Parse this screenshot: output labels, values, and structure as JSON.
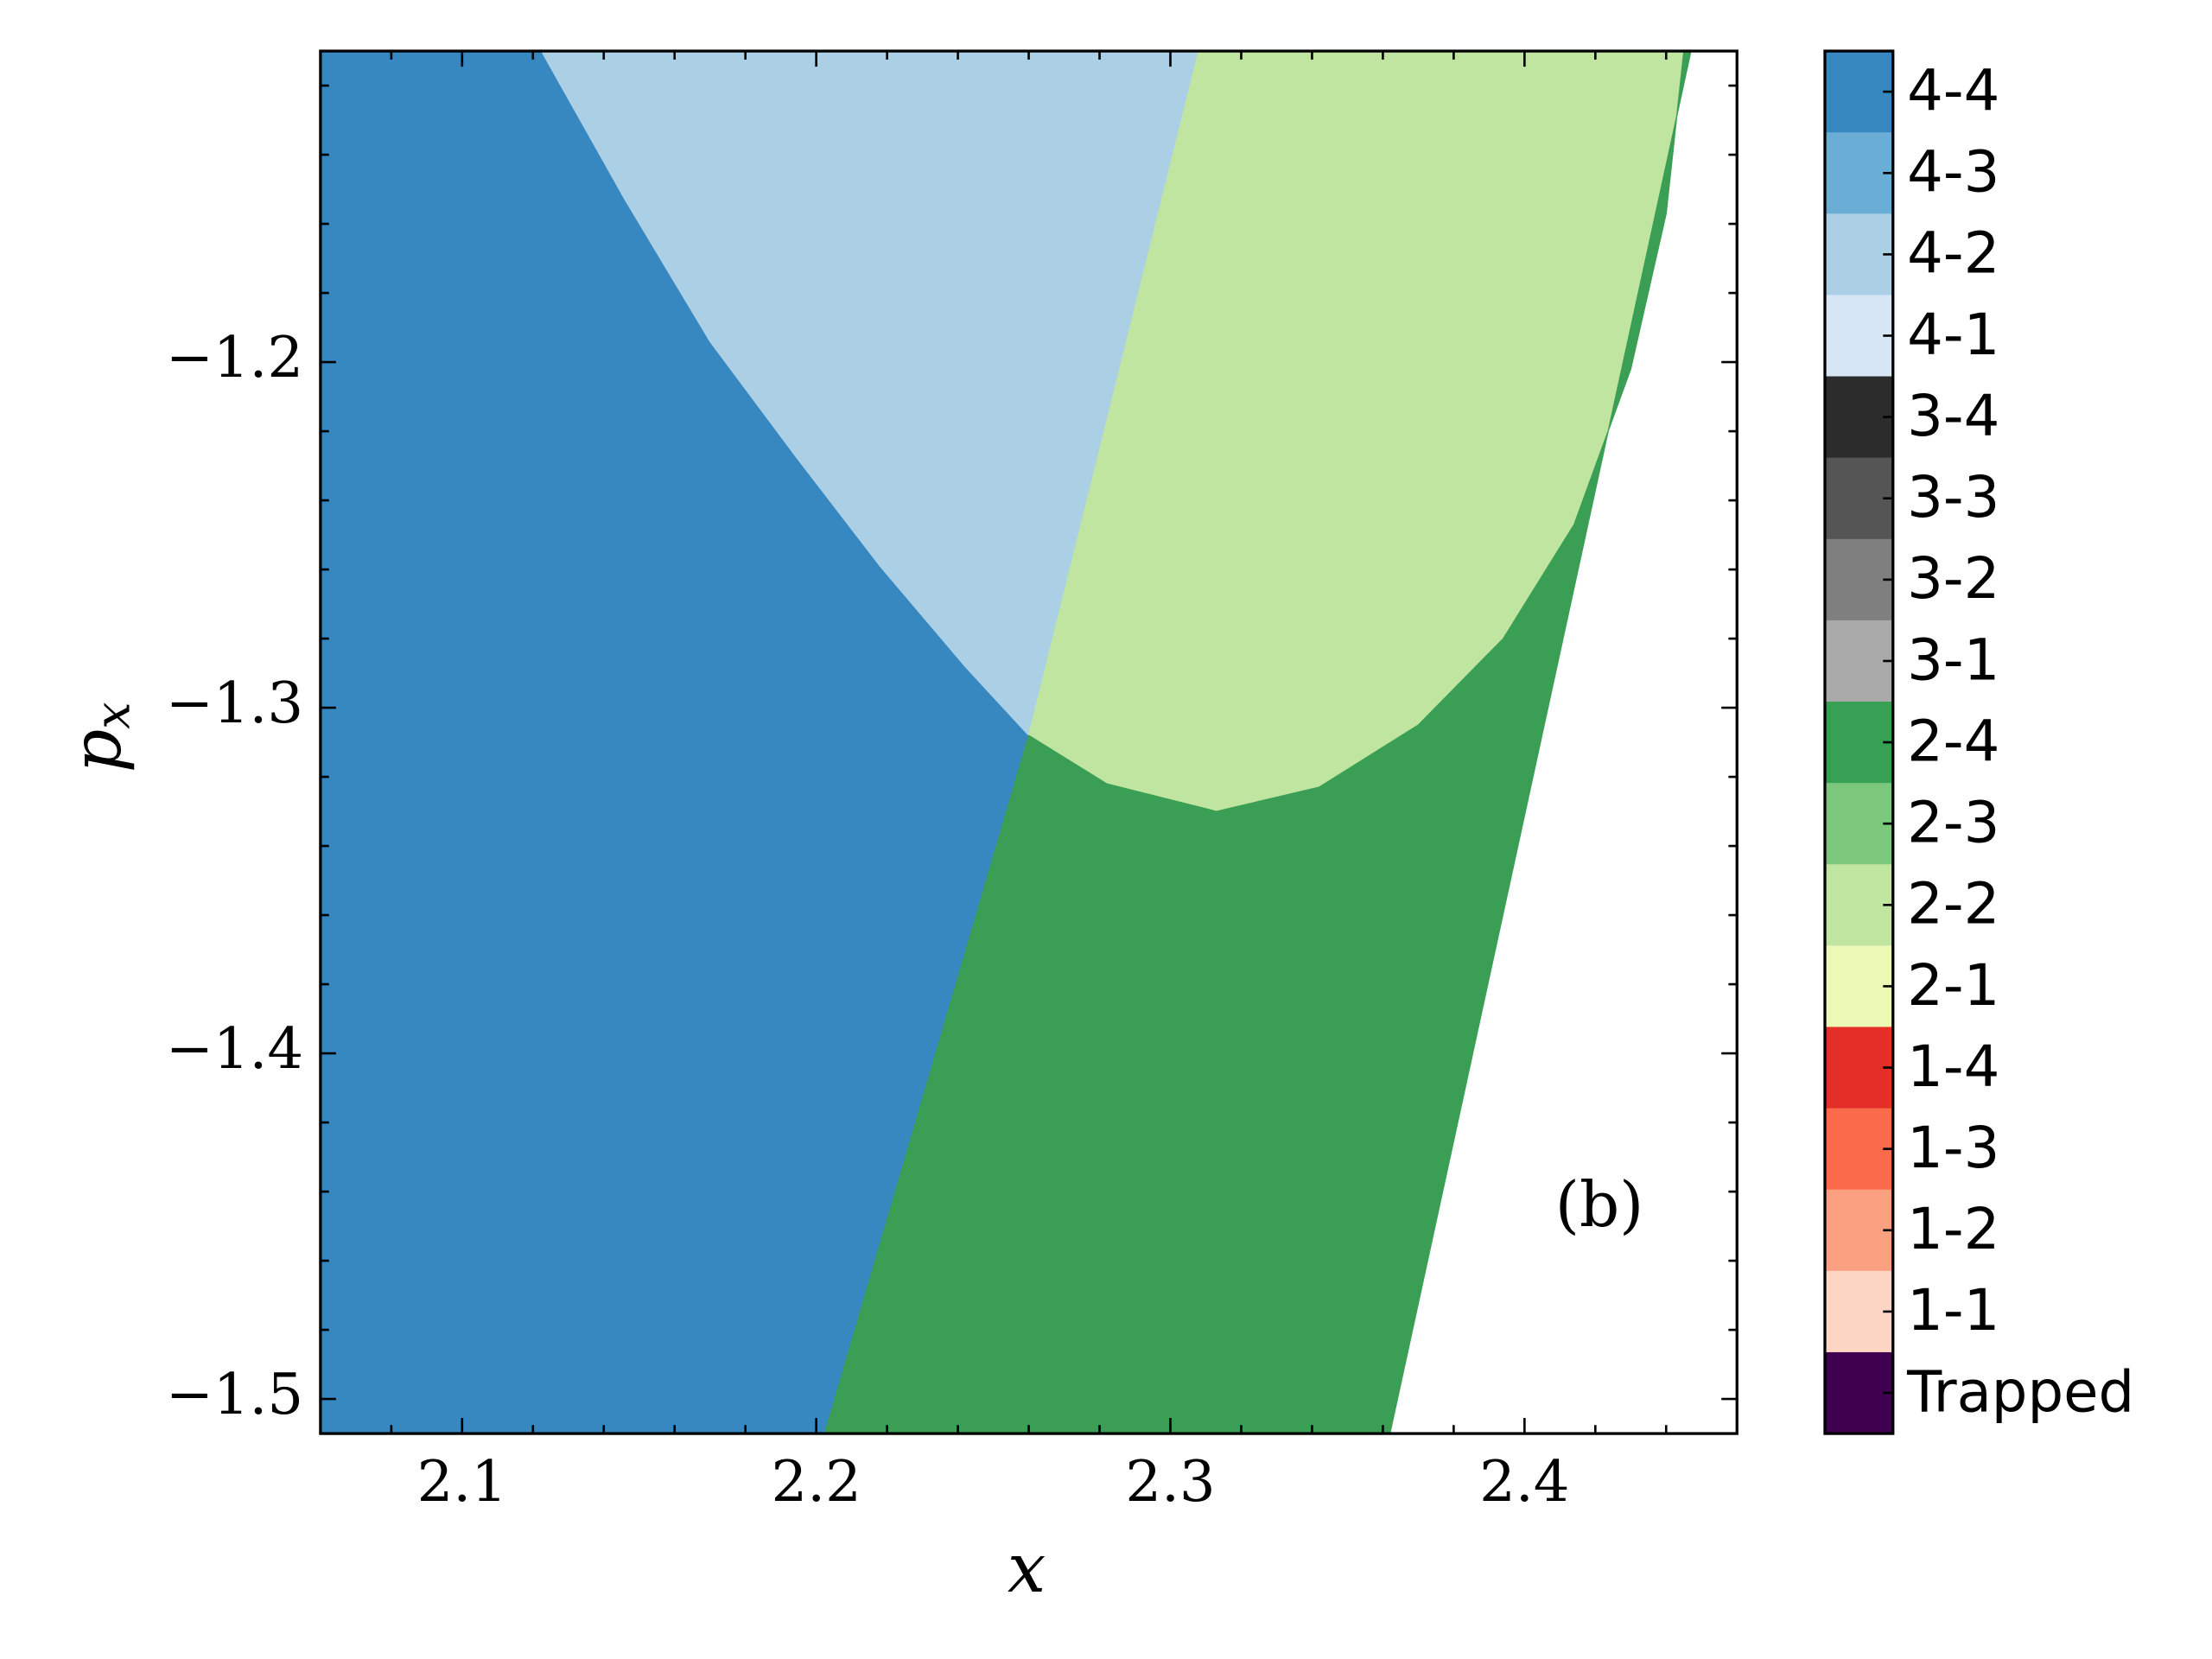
{
  "chart_data": {
    "type": "region",
    "xlabel": "x",
    "ylabel": "p",
    "ylabel_subscript": "x",
    "annotations": [
      "(b)"
    ],
    "xlim": [
      2.06,
      2.46
    ],
    "ylim": [
      -1.51,
      -1.11
    ],
    "xticks": [
      2.1,
      2.2,
      2.3,
      2.4
    ],
    "yticks": [
      {
        "value": -1.2,
        "label": "−1.2"
      },
      {
        "value": -1.3,
        "label": "−1.3"
      },
      {
        "value": -1.4,
        "label": "−1.4"
      },
      {
        "value": -1.5,
        "label": "−1.5"
      }
    ],
    "xminorticks": [
      2.08,
      2.12,
      2.14,
      2.16,
      2.18,
      2.22,
      2.24,
      2.26,
      2.28,
      2.32,
      2.34,
      2.36,
      2.38,
      2.42,
      2.44
    ],
    "yminorticks": [
      -1.12,
      -1.14,
      -1.16,
      -1.18,
      -1.22,
      -1.24,
      -1.26,
      -1.28,
      -1.32,
      -1.34,
      -1.36,
      -1.38,
      -1.42,
      -1.44,
      -1.46,
      -1.48
    ],
    "regions": [
      {
        "color": "#3787c0",
        "x": [
          2.06,
          2.1224,
          2.146,
          2.17,
          2.194,
          2.218,
          2.242,
          2.26,
          2.2024,
          2.06
        ],
        "y": [
          -1.11,
          -1.11,
          -1.153,
          -1.194,
          -1.227,
          -1.259,
          -1.288,
          -1.308,
          -1.51,
          -1.51
        ]
      },
      {
        "color": "#abd0e6",
        "x": [
          2.1224,
          2.146,
          2.17,
          2.194,
          2.218,
          2.242,
          2.26,
          2.308
        ],
        "y": [
          -1.11,
          -1.153,
          -1.194,
          -1.227,
          -1.259,
          -1.288,
          -1.308,
          -1.11
        ]
      },
      {
        "color": "#bfe5a0",
        "x": [
          2.26,
          2.308,
          2.445,
          2.44,
          2.43,
          2.414,
          2.394,
          2.37,
          2.342,
          2.313,
          2.282
        ],
        "y": [
          -1.308,
          -1.11,
          -1.11,
          -1.157,
          -1.202,
          -1.247,
          -1.28,
          -1.305,
          -1.323,
          -1.33,
          -1.322
        ]
      },
      {
        "color": "#3a9f55",
        "x": [
          2.2024,
          2.26,
          2.282,
          2.313,
          2.342,
          2.37,
          2.394,
          2.414,
          2.43,
          2.44,
          2.445,
          2.447,
          2.362
        ],
        "y": [
          -1.51,
          -1.308,
          -1.322,
          -1.33,
          -1.323,
          -1.305,
          -1.28,
          -1.247,
          -1.202,
          -1.157,
          -1.11,
          -1.11,
          -1.51
        ]
      }
    ],
    "colorbar": {
      "labels": [
        "4-4",
        "4-3",
        "4-2",
        "4-1",
        "3-4",
        "3-3",
        "3-2",
        "3-1",
        "2-4",
        "2-3",
        "2-2",
        "2-1",
        "1-4",
        "1-3",
        "1-2",
        "1-1",
        "Trapped"
      ],
      "colors": [
        "#3787c0",
        "#6aaed6",
        "#abd0e6",
        "#d6e6f4",
        "#2c2c2c",
        "#555555",
        "#7f7f7f",
        "#aaaaaa",
        "#37a055",
        "#7bc77c",
        "#bfe5a0",
        "#ecf8b6",
        "#e32f27",
        "#fb6b4b",
        "#fca082",
        "#fdd5c4",
        "#3f004f"
      ]
    }
  }
}
